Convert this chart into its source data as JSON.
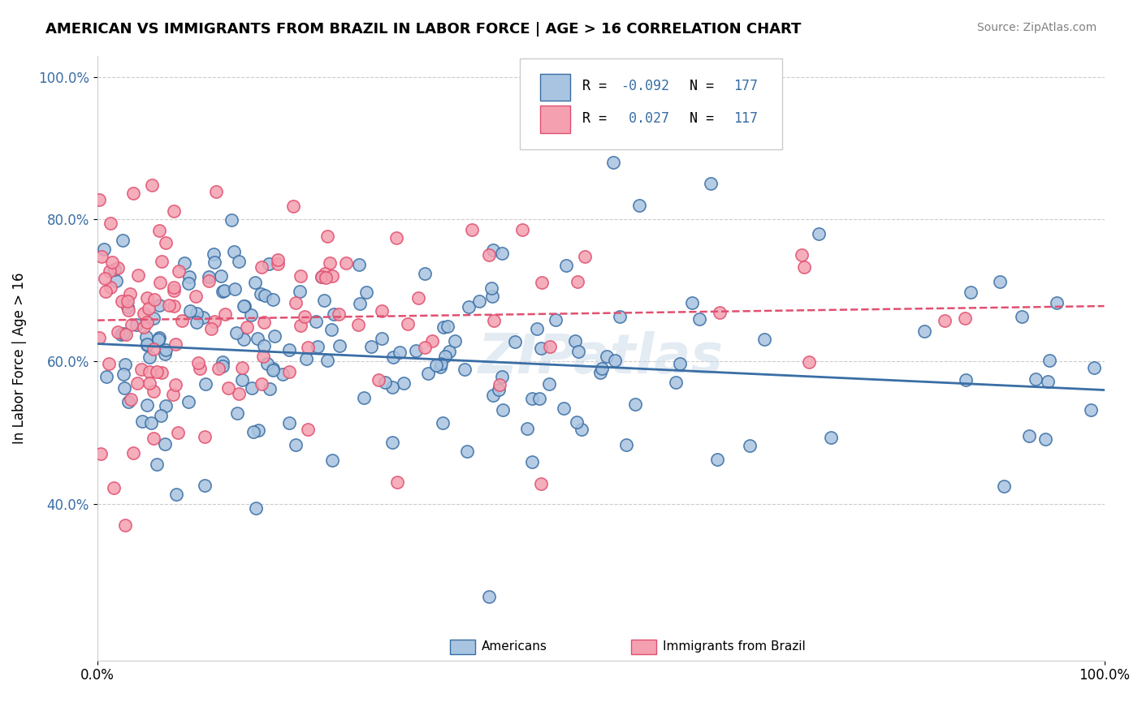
{
  "title": "AMERICAN VS IMMIGRANTS FROM BRAZIL IN LABOR FORCE | AGE > 16 CORRELATION CHART",
  "source": "Source: ZipAtlas.com",
  "ylabel": "In Labor Force | Age > 16",
  "xlim": [
    0.0,
    1.0
  ],
  "ylim": [
    0.18,
    1.03
  ],
  "yticks": [
    0.4,
    0.6,
    0.8,
    1.0
  ],
  "ytick_labels": [
    "40.0%",
    "60.0%",
    "80.0%",
    "100.0%"
  ],
  "xtick_labels": [
    "0.0%",
    "100.0%"
  ],
  "blue_R": -0.092,
  "blue_N": 177,
  "pink_R": 0.027,
  "pink_N": 117,
  "blue_color": "#a8c4e0",
  "blue_line_color": "#3a6ea5",
  "pink_color": "#f4a0b0",
  "pink_line_color": "#e05070",
  "legend_label_americans": "Americans",
  "legend_label_immigrants": "Immigrants from Brazil",
  "watermark": "ZIPatlas",
  "blue_trend_slope": -0.065,
  "blue_trend_intercept": 0.625,
  "pink_trend_slope": 0.02,
  "pink_trend_intercept": 0.658
}
